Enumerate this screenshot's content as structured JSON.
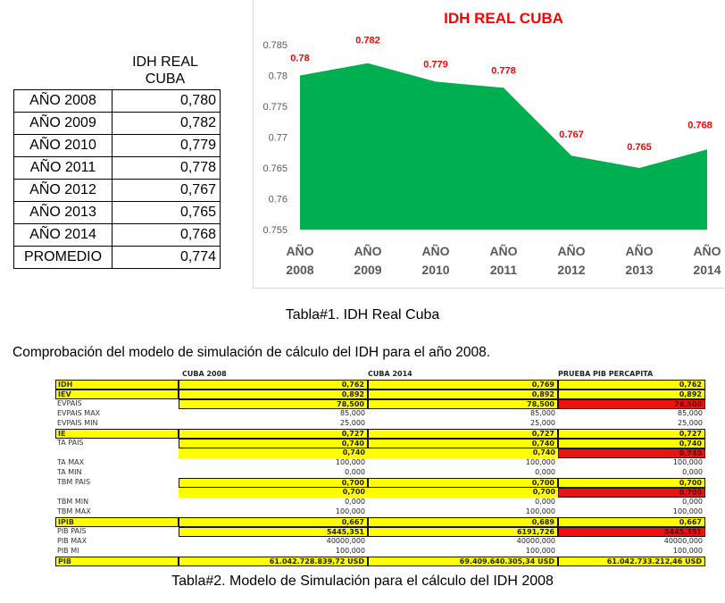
{
  "table1": {
    "header": "IDH REAL CUBA",
    "rows": [
      {
        "label": "AÑO 2008",
        "value": "0,780"
      },
      {
        "label": "AÑO 2009",
        "value": "0,782"
      },
      {
        "label": "AÑO 2010",
        "value": "0,779"
      },
      {
        "label": "AÑO 2011",
        "value": "0,778"
      },
      {
        "label": "AÑO 2012",
        "value": "0,767"
      },
      {
        "label": "AÑO 2013",
        "value": "0,765"
      },
      {
        "label": "AÑO 2014",
        "value": "0,768"
      },
      {
        "label": "PROMEDIO",
        "value": "0,774"
      }
    ]
  },
  "chart_data": {
    "type": "area",
    "title": "IDH REAL CUBA",
    "categories": [
      "AÑO 2008",
      "AÑO 2009",
      "AÑO 2010",
      "AÑO 2011",
      "AÑO 2012",
      "AÑO 2013",
      "AÑO 2014"
    ],
    "values": [
      0.78,
      0.782,
      0.779,
      0.778,
      0.767,
      0.765,
      0.768
    ],
    "data_labels": [
      "0.78",
      "0.782",
      "0.779",
      "0.778",
      "0.767",
      "0.765",
      "0.768"
    ],
    "ylim": [
      0.755,
      0.785
    ],
    "yticks": [
      "0.755",
      "0.76",
      "0.765",
      "0.77",
      "0.775",
      "0.78",
      "0.785"
    ],
    "fill_color": "#00b050",
    "label_color": "#ff0000",
    "grid": false
  },
  "caption1": "Tabla#1. IDH Real Cuba",
  "intro": "Comprobación del modelo de simulación de cálculo del IDH para el año 2008.",
  "table2": {
    "headers": [
      "CUBA 2008",
      "CUBA 2014",
      "PRUEBA PIB PERCAPITA"
    ],
    "rows": [
      {
        "label": "IDH",
        "values": [
          "0,762",
          "0,769",
          "0,762"
        ],
        "hl": true,
        "s": [
          "y",
          "y",
          "y"
        ]
      },
      {
        "label": "IEV",
        "values": [
          "0,892",
          "0,892",
          "0,892"
        ],
        "hl": true,
        "s": [
          "y",
          "y",
          "y"
        ]
      },
      {
        "label": "EVPAIS",
        "values": [
          "78,500",
          "78,500",
          "78,500"
        ],
        "s": [
          "y",
          "y",
          "r"
        ]
      },
      {
        "label": "EVPAIS MAX",
        "values": [
          "85,000",
          "85,000",
          "85,000"
        ],
        "s": [
          "",
          "",
          ""
        ]
      },
      {
        "label": "EVPAIS MIN",
        "values": [
          "25,000",
          "25,000",
          "25,000"
        ],
        "s": [
          "",
          "",
          ""
        ]
      },
      {
        "label": "IE",
        "values": [
          "0,727",
          "0,727",
          "0,727"
        ],
        "hl": true,
        "s": [
          "y",
          "y",
          "y"
        ]
      },
      {
        "label": "TA PAIS",
        "values": [
          "0,740",
          "0,740",
          "0,740"
        ],
        "s": [
          "y",
          "y",
          "y"
        ]
      },
      {
        "label": "",
        "values": [
          "0,740",
          "0,740",
          "0,740"
        ],
        "s": [
          "yb",
          "yb",
          "r"
        ]
      },
      {
        "label": "TA MAX",
        "values": [
          "100,000",
          "100,000",
          "100,000"
        ],
        "s": [
          "",
          "",
          ""
        ]
      },
      {
        "label": "TA MIN",
        "values": [
          "0,000",
          "0,000",
          "0,000"
        ],
        "s": [
          "",
          "",
          ""
        ]
      },
      {
        "label": "TBM  PAIS",
        "values": [
          "0,700",
          "0,700",
          "0,700"
        ],
        "s": [
          "y",
          "y",
          "y"
        ]
      },
      {
        "label": "",
        "values": [
          "0,700",
          "0,700",
          "0,700"
        ],
        "s": [
          "yb",
          "yb",
          "r"
        ]
      },
      {
        "label": "TBM MIN",
        "values": [
          "0,000",
          "0,000",
          "0,000"
        ],
        "s": [
          "",
          "",
          ""
        ]
      },
      {
        "label": "TBM MAX",
        "values": [
          "100,000",
          "100,000",
          "100,000"
        ],
        "s": [
          "",
          "",
          ""
        ]
      },
      {
        "label": "IPIB",
        "values": [
          "0,667",
          "0,689",
          "0,667"
        ],
        "hl": true,
        "s": [
          "y",
          "y",
          "y"
        ]
      },
      {
        "label": "PIB PAIS",
        "values": [
          "5445,351",
          "6191,726",
          "5445,351"
        ],
        "s": [
          "y",
          "y",
          "r"
        ]
      },
      {
        "label": "PIB MAX",
        "values": [
          "40000,000",
          "40000,000",
          "40000,000"
        ],
        "s": [
          "",
          "",
          ""
        ]
      },
      {
        "label": "PIB MI",
        "values": [
          "100,000",
          "100,000",
          "100,000"
        ],
        "s": [
          "",
          "",
          ""
        ]
      },
      {
        "label": "PIB",
        "values": [
          "61.042.728.839,72 USD",
          "69.409.640.305,34 USD",
          "61.042.733.212,46 USD"
        ],
        "hl": true,
        "s": [
          "y",
          "y",
          "y"
        ]
      }
    ]
  },
  "caption2": "Tabla#2. Modelo de Simulación para el cálculo del IDH 2008"
}
